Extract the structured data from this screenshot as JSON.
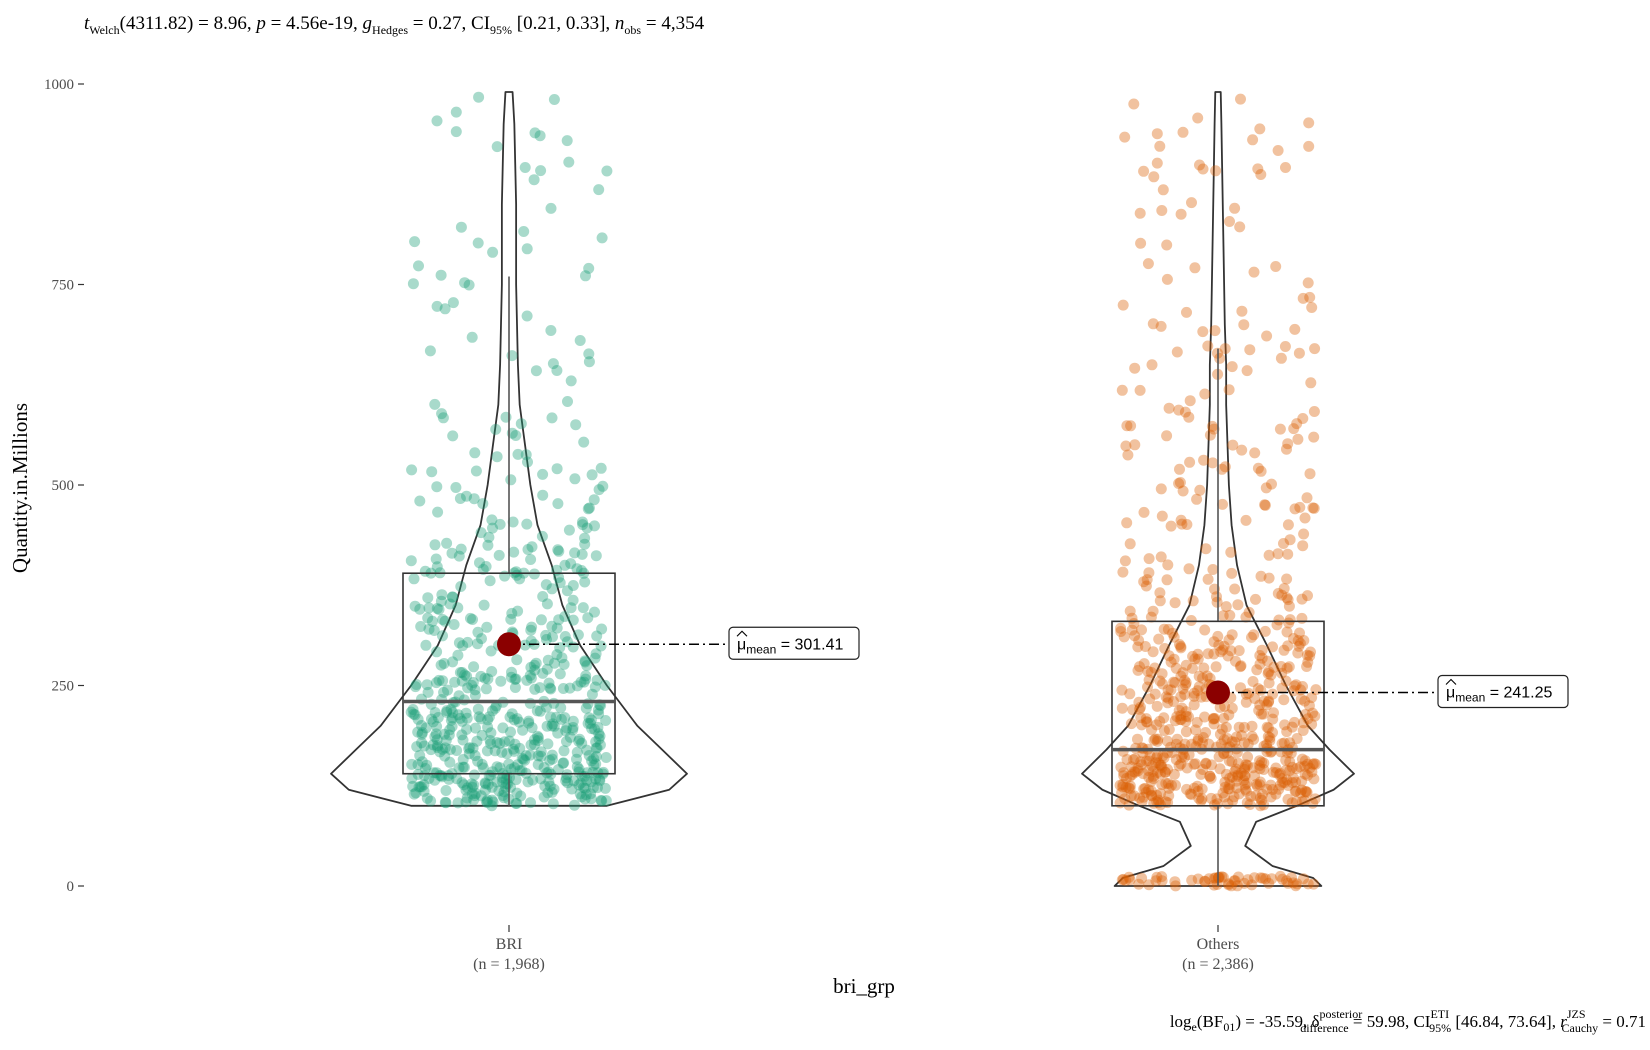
{
  "subtitle": {
    "t_label": "t",
    "t_sub": "Welch",
    "df": "(4311.82)",
    "t_value": "8.96",
    "p_label": "p",
    "p_value": "4.56e-19",
    "g_label": "g",
    "g_sub": "Hedges",
    "g_value": "0.27",
    "ci_label": "CI",
    "ci_sub": "95%",
    "ci_value": "[0.21, 0.33]",
    "n_label": "n",
    "n_sub": "obs",
    "n_value": "4,354"
  },
  "caption": {
    "log_label": "log",
    "log_sub": "e",
    "bf_label": "BF",
    "bf_sub": "01",
    "bf_value": "-35.59",
    "delta_label": "δ",
    "delta_sup": "posterior",
    "delta_sub": "difference",
    "delta_value": "59.98",
    "ci_label": "CI",
    "ci_sup": "ETI",
    "ci_sub": "95%",
    "ci_value": "[46.84, 73.64]",
    "r_label": "r",
    "r_sup": "JZS",
    "r_sub": "Cauchy",
    "r_value": "0.71"
  },
  "chart_data": {
    "type": "violin-box-scatter",
    "xlabel": "bri_grp",
    "ylabel": "Quantity.in.Millions",
    "ylim": [
      -50,
      1000
    ],
    "yticks": [
      0,
      250,
      500,
      750,
      1000
    ],
    "grid": false,
    "groups": [
      {
        "name": "BRI",
        "n_label": "(n = 1,968)",
        "n": 1968,
        "color": "#1b9e77",
        "mean": 301.41,
        "mean_label": "301.41",
        "box": {
          "q1": 140,
          "median": 230,
          "q3": 390,
          "whisker_low": 100,
          "whisker_high": 760
        },
        "range": [
          100,
          990
        ],
        "violin_half_width": [
          [
            100,
            0.55
          ],
          [
            120,
            0.9
          ],
          [
            140,
            1.0
          ],
          [
            170,
            0.86
          ],
          [
            200,
            0.72
          ],
          [
            250,
            0.55
          ],
          [
            300,
            0.4
          ],
          [
            350,
            0.3
          ],
          [
            400,
            0.24
          ],
          [
            450,
            0.16
          ],
          [
            500,
            0.12
          ],
          [
            550,
            0.09
          ],
          [
            600,
            0.06
          ],
          [
            650,
            0.05
          ],
          [
            700,
            0.045
          ],
          [
            750,
            0.04
          ],
          [
            800,
            0.04
          ],
          [
            850,
            0.04
          ],
          [
            900,
            0.035
          ],
          [
            950,
            0.03
          ],
          [
            990,
            0.02
          ]
        ]
      },
      {
        "name": "Others",
        "n_label": "(n = 2,386)",
        "n": 2386,
        "color": "#d95f02",
        "mean": 241.25,
        "mean_label": "241.25",
        "box": {
          "q1": 100,
          "median": 170,
          "q3": 330,
          "whisker_low": 0,
          "whisker_high": 670
        },
        "range": [
          0,
          990
        ],
        "violin_half_width": [
          [
            0,
            0.76
          ],
          [
            10,
            0.7
          ],
          [
            25,
            0.4
          ],
          [
            50,
            0.2
          ],
          [
            80,
            0.28
          ],
          [
            100,
            0.58
          ],
          [
            120,
            0.85
          ],
          [
            140,
            1.0
          ],
          [
            170,
            0.82
          ],
          [
            200,
            0.66
          ],
          [
            250,
            0.5
          ],
          [
            300,
            0.36
          ],
          [
            350,
            0.21
          ],
          [
            400,
            0.14
          ],
          [
            450,
            0.1
          ],
          [
            500,
            0.08
          ],
          [
            550,
            0.07
          ],
          [
            600,
            0.06
          ],
          [
            650,
            0.06
          ],
          [
            700,
            0.05
          ],
          [
            750,
            0.045
          ],
          [
            800,
            0.04
          ],
          [
            850,
            0.035
          ],
          [
            900,
            0.03
          ],
          [
            950,
            0.025
          ],
          [
            990,
            0.02
          ]
        ]
      }
    ],
    "mean_marker_color": "#8b0000",
    "mean_tag_prefix": "μ",
    "mean_tag_sub": "mean"
  }
}
